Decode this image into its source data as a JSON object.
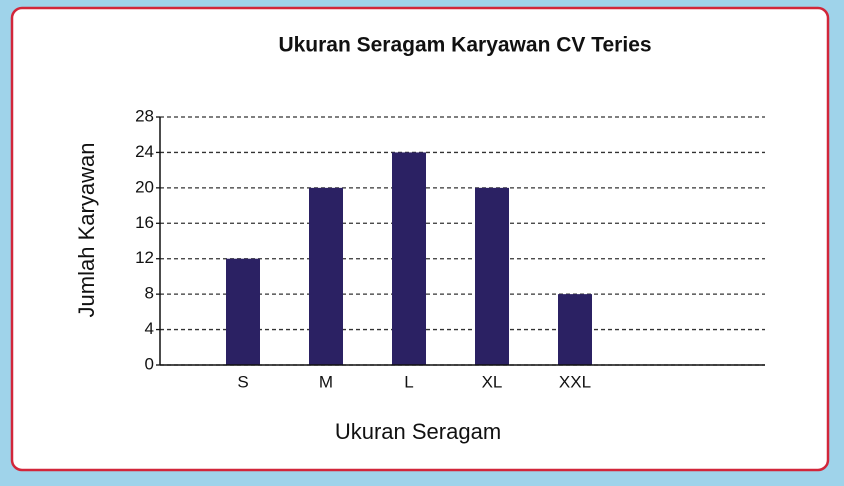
{
  "chart_data": {
    "type": "bar",
    "title": "Ukuran Seragam Karyawan CV Teries",
    "x_label": "Ukuran Seragam",
    "y_label": "Jumlah Karyawan",
    "categories": [
      "S",
      "M",
      "L",
      "XL",
      "XXL"
    ],
    "values": [
      12,
      20,
      24,
      20,
      8
    ],
    "color": "#2b2163",
    "ylim": [
      0,
      28
    ],
    "yticks": [
      0,
      4,
      8,
      12,
      16,
      20,
      24,
      28
    ],
    "grid": true
  }
}
